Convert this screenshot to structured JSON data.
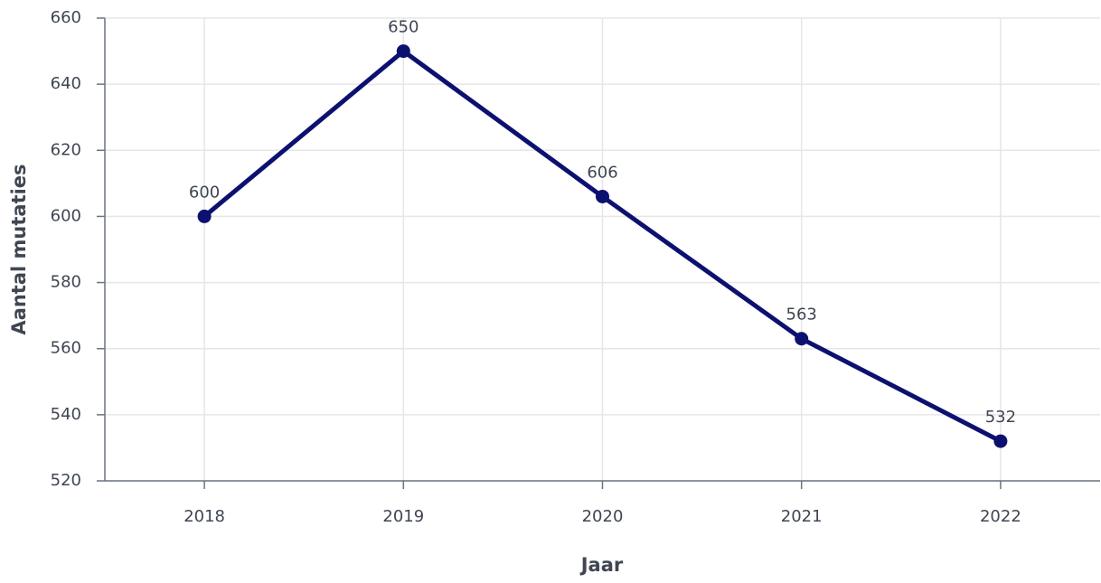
{
  "chart_data": {
    "type": "line",
    "x_label": "Jaar",
    "y_label": "Aantal mutaties",
    "categories": [
      "2018",
      "2019",
      "2020",
      "2021",
      "2022"
    ],
    "series": [
      {
        "name": "Aantal mutaties",
        "color": "#0c1170",
        "values": [
          600,
          650,
          606,
          563,
          532
        ]
      }
    ],
    "ylim": [
      520,
      660
    ],
    "yticks": [
      520,
      540,
      560,
      580,
      600,
      620,
      640,
      660
    ],
    "grid": true
  }
}
